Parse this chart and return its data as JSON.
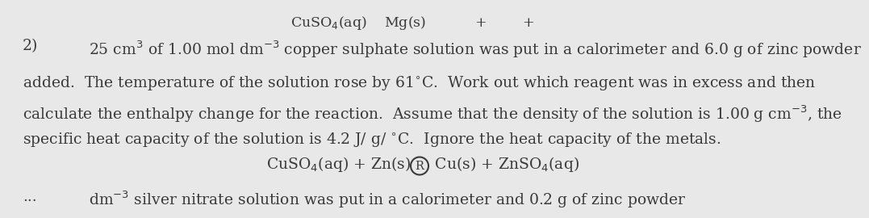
{
  "background_color": "#e8e8e8",
  "text_color": "#3a3a3a",
  "font_size": 13.5,
  "fig_width": 10.02,
  "fig_height": 2.47,
  "top_text": "CuSO$_4$(aq)    Mg(s)           +       +",
  "number": "2)",
  "line1": "25 cm$^3$ of 1.00 mol dm$^{-3}$ copper sulphate solution was put in a calorimeter and 6.0 g of zinc powder",
  "line2": "added.  The temperature of the solution rose by 61$^{\\circ}$C.  Work out which reagent was in excess and then",
  "line3": "calculate the enthalpy change for the reaction.  Assume that the density of the solution is 1.00 g cm$^{-3}$, the",
  "line4": "specific heat capacity of the solution is 4.2 J/ g/ $^{\\circ}$C.  Ignore the heat capacity of the metals.",
  "eq_left": "CuSO$_4$(aq) + Zn(s) ",
  "eq_right": " Cu(s) + ZnSO$_4$(aq)",
  "line6_a": "...",
  "line6_b": "dm$^{-3}$ silver nitrate solution was put in a calorimeter and 0.2 g of zinc powder"
}
